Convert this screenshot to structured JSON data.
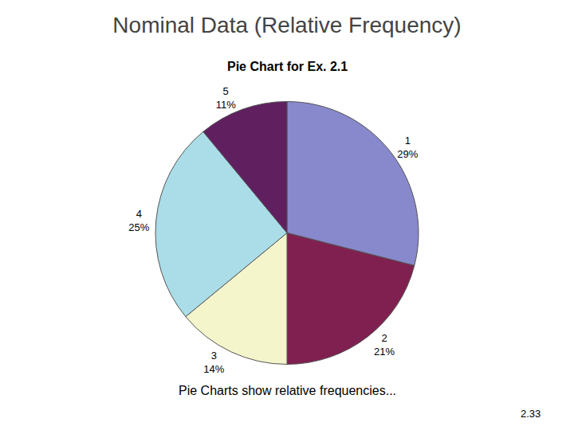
{
  "chart_data": {
    "type": "pie",
    "title": "Nominal Data (Relative Frequency)",
    "subtitle": "Pie Chart for Ex. 2.1",
    "categories": [
      "1",
      "2",
      "3",
      "4",
      "5"
    ],
    "values": [
      29,
      21,
      14,
      25,
      11
    ],
    "value_labels": [
      "29%",
      "21%",
      "14%",
      "25%",
      "11%"
    ],
    "colors": [
      "#8888cc",
      "#802050",
      "#f5f5cc",
      "#aadde8",
      "#602060"
    ],
    "data_labels": true,
    "annotations": [
      "Pie Charts show relative frequencies...",
      "2.33"
    ]
  }
}
